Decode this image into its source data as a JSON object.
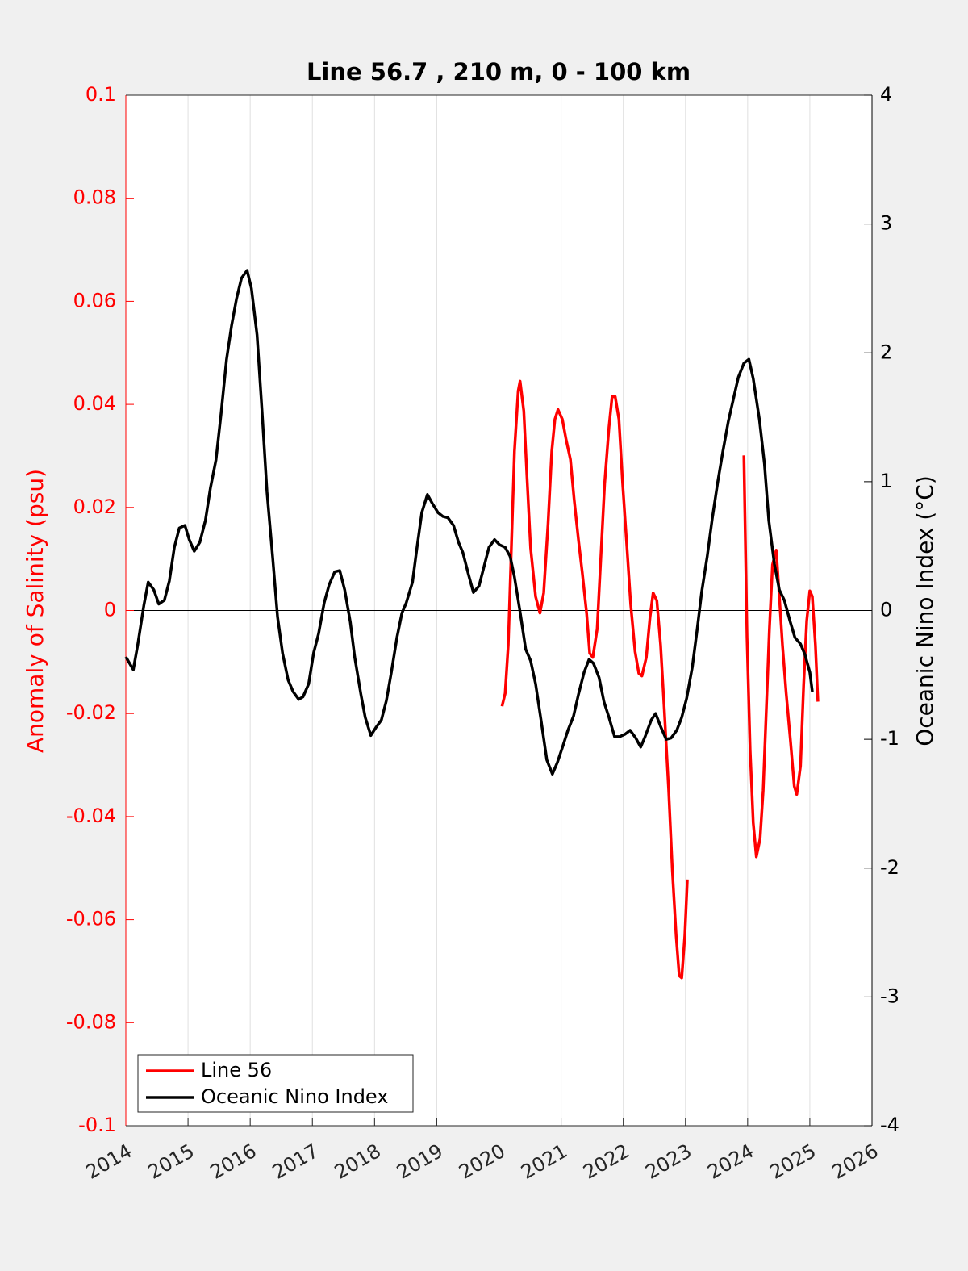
{
  "chart_data": {
    "type": "line",
    "title": "Line 56.7 , 210 m, 0 - 100 km",
    "y_label": "Anomaly of Salinity (psu)",
    "y2_label": "Oceanic Nino Index (°C)",
    "xlim": [
      2014,
      2026
    ],
    "xticks": [
      2014,
      2015,
      2016,
      2017,
      2018,
      2019,
      2020,
      2021,
      2022,
      2023,
      2024,
      2025,
      2026
    ],
    "ylim": [
      -0.1,
      0.1
    ],
    "yticks": [
      -0.1,
      -0.08,
      -0.06,
      -0.04,
      -0.02,
      0,
      0.02,
      0.04,
      0.06,
      0.08,
      0.1
    ],
    "y2lim": [
      -4,
      4
    ],
    "y2ticks": [
      -4,
      -3,
      -2,
      -1,
      0,
      1,
      2,
      3,
      4
    ],
    "grid": "x",
    "legend": "lower left",
    "series": [
      {
        "name": "Line 56",
        "color": "#ff0000",
        "axis": "y",
        "x": [
          2020.05,
          2020.1,
          2020.15,
          2020.2,
          2020.25,
          2020.31,
          2020.34,
          2020.4,
          2020.45,
          2020.51,
          2020.59,
          2020.66,
          2020.72,
          2020.79,
          2020.85,
          2020.9,
          2020.95,
          2021.02,
          2021.08,
          2021.15,
          2021.21,
          2021.28,
          2021.34,
          2021.41,
          2021.46,
          2021.51,
          2021.58,
          2021.64,
          2021.7,
          2021.77,
          2021.82,
          2021.87,
          2021.93,
          2021.99,
          2022.06,
          2022.12,
          2022.19,
          2022.25,
          2022.3,
          2022.37,
          2022.43,
          2022.48,
          2022.54,
          2022.6,
          2022.66,
          2022.73,
          2022.79,
          2022.85,
          2022.9,
          2022.94,
          2022.99,
          2023.03,
          null,
          2023.94,
          2023.99,
          2024.04,
          2024.09,
          2024.14,
          2024.2,
          2024.25,
          2024.3,
          2024.35,
          2024.4,
          2024.46,
          2024.51,
          2024.56,
          2024.62,
          2024.69,
          2024.75,
          2024.79,
          2024.85,
          2024.9,
          2024.95,
          2025.0,
          2025.04,
          2025.09,
          2025.13
        ],
        "values": [
          -0.0186,
          -0.0161,
          -0.0067,
          0.0121,
          0.0309,
          0.0426,
          0.0445,
          0.0387,
          0.0262,
          0.0121,
          0.0027,
          -0.0005,
          0.0034,
          0.0168,
          0.0309,
          0.0371,
          0.039,
          0.0371,
          0.0332,
          0.0293,
          0.0215,
          0.0136,
          0.0074,
          -0.0005,
          -0.0083,
          -0.0091,
          -0.0036,
          0.0105,
          0.0246,
          0.0356,
          0.0415,
          0.0415,
          0.0371,
          0.0246,
          0.0121,
          0.0011,
          -0.008,
          -0.0122,
          -0.0127,
          -0.0091,
          -0.0013,
          0.0034,
          0.0019,
          -0.0067,
          -0.0193,
          -0.0349,
          -0.0506,
          -0.0631,
          -0.0709,
          -0.0713,
          -0.0631,
          -0.0522,
          null,
          0.0301,
          -0.0052,
          -0.0271,
          -0.0412,
          -0.0478,
          -0.0443,
          -0.0349,
          -0.0193,
          -0.0036,
          0.0089,
          0.0117,
          0.0027,
          -0.0067,
          -0.0161,
          -0.0255,
          -0.0341,
          -0.0357,
          -0.0302,
          -0.0146,
          -0.002,
          0.0038,
          0.0027,
          -0.0067,
          -0.0177
        ]
      },
      {
        "name": "Oceanic Nino Index",
        "color": "#000000",
        "axis": "y2",
        "x": [
          2014.0,
          2014.12,
          2014.19,
          2014.29,
          2014.36,
          2014.45,
          2014.53,
          2014.62,
          2014.7,
          2014.78,
          2014.86,
          2014.95,
          2015.02,
          2015.1,
          2015.19,
          2015.28,
          2015.36,
          2015.45,
          2015.53,
          2015.62,
          2015.7,
          2015.78,
          2015.86,
          2015.95,
          2016.02,
          2016.11,
          2016.19,
          2016.27,
          2016.36,
          2016.44,
          2016.52,
          2016.61,
          2016.69,
          2016.78,
          2016.85,
          2016.94,
          2017.02,
          2017.1,
          2017.19,
          2017.27,
          2017.36,
          2017.44,
          2017.52,
          2017.61,
          2017.68,
          2017.78,
          2017.85,
          2017.94,
          2018.02,
          2018.11,
          2018.19,
          2018.27,
          2018.36,
          2018.44,
          2018.51,
          2018.61,
          2018.68,
          2018.76,
          2018.85,
          2018.93,
          2019.02,
          2019.1,
          2019.18,
          2019.27,
          2019.35,
          2019.42,
          2019.51,
          2019.59,
          2019.68,
          2019.76,
          2019.84,
          2019.93,
          2020.01,
          2020.1,
          2020.18,
          2020.25,
          2020.34,
          2020.43,
          2020.51,
          2020.59,
          2020.68,
          2020.77,
          2020.86,
          2020.94,
          2021.03,
          2021.11,
          2021.2,
          2021.28,
          2021.37,
          2021.45,
          2021.52,
          2021.61,
          2021.69,
          2021.77,
          2021.86,
          2021.94,
          2022.03,
          2022.11,
          2022.2,
          2022.28,
          2022.35,
          2022.45,
          2022.52,
          2022.6,
          2022.69,
          2022.77,
          2022.86,
          2022.94,
          2023.02,
          2023.11,
          2023.19,
          2023.26,
          2023.35,
          2023.43,
          2023.52,
          2023.6,
          2023.69,
          2023.77,
          2023.85,
          2023.94,
          2024.02,
          2024.09,
          2024.19,
          2024.27,
          2024.34,
          2024.43,
          2024.51,
          2024.59,
          2024.68,
          2024.76,
          2024.85,
          2024.92,
          2025.0,
          2025.04
        ],
        "values": [
          -0.36,
          -0.46,
          -0.27,
          0.04,
          0.22,
          0.16,
          0.05,
          0.08,
          0.23,
          0.49,
          0.64,
          0.66,
          0.55,
          0.46,
          0.53,
          0.7,
          0.95,
          1.17,
          1.52,
          1.95,
          2.21,
          2.42,
          2.58,
          2.64,
          2.5,
          2.14,
          1.55,
          0.92,
          0.42,
          -0.05,
          -0.33,
          -0.54,
          -0.63,
          -0.69,
          -0.67,
          -0.57,
          -0.33,
          -0.18,
          0.06,
          0.2,
          0.3,
          0.31,
          0.16,
          -0.09,
          -0.36,
          -0.65,
          -0.83,
          -0.97,
          -0.91,
          -0.85,
          -0.7,
          -0.48,
          -0.21,
          -0.02,
          0.06,
          0.22,
          0.48,
          0.76,
          0.9,
          0.83,
          0.76,
          0.73,
          0.72,
          0.66,
          0.53,
          0.45,
          0.28,
          0.14,
          0.19,
          0.34,
          0.49,
          0.55,
          0.51,
          0.49,
          0.42,
          0.26,
          -0.01,
          -0.3,
          -0.39,
          -0.57,
          -0.86,
          -1.16,
          -1.27,
          -1.18,
          -1.05,
          -0.93,
          -0.82,
          -0.65,
          -0.48,
          -0.38,
          -0.41,
          -0.52,
          -0.71,
          -0.83,
          -0.98,
          -0.98,
          -0.96,
          -0.93,
          -0.99,
          -1.06,
          -0.98,
          -0.85,
          -0.8,
          -0.9,
          -1.0,
          -0.99,
          -0.93,
          -0.83,
          -0.68,
          -0.44,
          -0.14,
          0.14,
          0.42,
          0.71,
          1.0,
          1.23,
          1.47,
          1.64,
          1.81,
          1.92,
          1.95,
          1.8,
          1.48,
          1.14,
          0.7,
          0.36,
          0.16,
          0.08,
          -0.08,
          -0.21,
          -0.26,
          -0.34,
          -0.48,
          -0.63
        ]
      }
    ]
  }
}
